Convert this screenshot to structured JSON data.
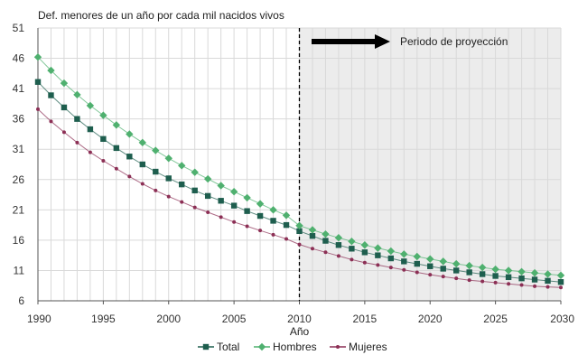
{
  "chart_data": {
    "type": "line",
    "ylabel": "Def. menores de un año por cada mil nacidos vivos",
    "xlabel": "Año",
    "ylim": [
      6,
      51
    ],
    "yticks": [
      6,
      11,
      16,
      21,
      26,
      31,
      36,
      41,
      46,
      51
    ],
    "xlim": [
      1990,
      2030
    ],
    "xticks": [
      1990,
      1995,
      2000,
      2005,
      2010,
      2015,
      2020,
      2025,
      2030
    ],
    "grid": "vertical and horizontal, light gray",
    "legend_position": "bottom-center",
    "annotation": {
      "text": "Periodo de proyección",
      "projection_start": 2010,
      "arrow": "right"
    },
    "x": [
      1990,
      1991,
      1992,
      1993,
      1994,
      1995,
      1996,
      1997,
      1998,
      1999,
      2000,
      2001,
      2002,
      2003,
      2004,
      2005,
      2006,
      2007,
      2008,
      2009,
      2010,
      2011,
      2012,
      2013,
      2014,
      2015,
      2016,
      2017,
      2018,
      2019,
      2020,
      2021,
      2022,
      2023,
      2024,
      2025,
      2026,
      2027,
      2028,
      2029,
      2030
    ],
    "series": [
      {
        "name": "Total",
        "color": "#1e5e4e",
        "marker": "square",
        "values": [
          42.1,
          39.9,
          37.9,
          36.0,
          34.3,
          32.7,
          31.2,
          29.8,
          28.5,
          27.3,
          26.2,
          25.2,
          24.2,
          23.3,
          22.5,
          21.7,
          20.8,
          20.0,
          19.2,
          18.5,
          17.5,
          16.7,
          15.9,
          15.2,
          14.6,
          14.0,
          13.5,
          13.0,
          12.5,
          12.1,
          11.7,
          11.3,
          11.0,
          10.7,
          10.4,
          10.1,
          9.9,
          9.7,
          9.5,
          9.3,
          9.1
        ]
      },
      {
        "name": "Hombres",
        "color": "#4fb06f",
        "marker": "diamond",
        "values": [
          46.2,
          44.0,
          41.9,
          40.0,
          38.2,
          36.6,
          35.0,
          33.5,
          32.1,
          30.8,
          29.5,
          28.3,
          27.2,
          26.1,
          25.0,
          24.0,
          23.0,
          22.0,
          21.0,
          20.1,
          18.4,
          17.7,
          17.0,
          16.4,
          15.8,
          15.2,
          14.7,
          14.2,
          13.7,
          13.3,
          12.9,
          12.5,
          12.1,
          11.8,
          11.5,
          11.2,
          11.0,
          10.8,
          10.6,
          10.4,
          10.2
        ]
      },
      {
        "name": "Mujeres",
        "color": "#8c2f55",
        "marker": "circle",
        "values": [
          37.6,
          35.6,
          33.8,
          32.1,
          30.5,
          29.1,
          27.8,
          26.5,
          25.3,
          24.2,
          23.2,
          22.3,
          21.4,
          20.6,
          19.8,
          19.0,
          18.3,
          17.6,
          16.9,
          16.2,
          15.3,
          14.6,
          14.0,
          13.4,
          12.8,
          12.3,
          11.9,
          11.5,
          11.1,
          10.7,
          10.3,
          10.0,
          9.7,
          9.4,
          9.2,
          9.0,
          8.8,
          8.6,
          8.4,
          8.3,
          8.2
        ]
      }
    ]
  }
}
